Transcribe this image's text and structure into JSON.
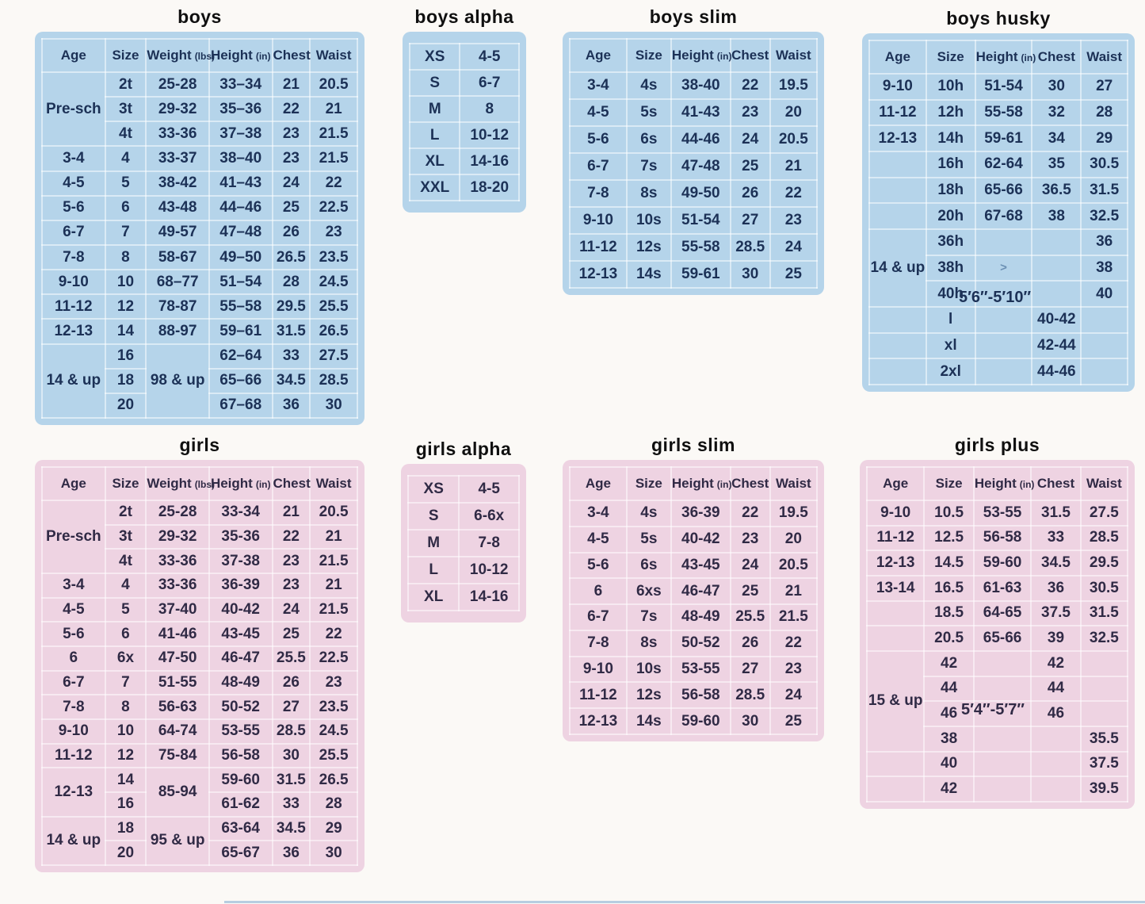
{
  "colors": {
    "blue_panel": "#b5d4ea",
    "pink_panel": "#eed3e2",
    "blue_text": "#1c3156",
    "pink_text": "#302a45"
  },
  "tables": [
    {
      "id": "boys",
      "title": "boys",
      "theme": "blue",
      "headers": [
        {
          "label": "Age"
        },
        {
          "label": "Size"
        },
        {
          "label": "Weight",
          "unit": "(lbs)"
        },
        {
          "label": "Height",
          "unit": "(in)"
        },
        {
          "label": "Chest"
        },
        {
          "label": "Waist"
        }
      ],
      "rows": [
        [
          {
            "t": "Pre-sch",
            "rs": 3
          },
          {
            "t": "2t"
          },
          {
            "t": "25-28"
          },
          {
            "t": "33–34"
          },
          {
            "t": "21"
          },
          {
            "t": "20.5"
          }
        ],
        [
          {
            "t": "3t"
          },
          {
            "t": "29-32"
          },
          {
            "t": "35–36"
          },
          {
            "t": "22"
          },
          {
            "t": "21"
          }
        ],
        [
          {
            "t": "4t"
          },
          {
            "t": "33-36"
          },
          {
            "t": "37–38"
          },
          {
            "t": "23"
          },
          {
            "t": "21.5"
          }
        ],
        [
          "3-4",
          "4",
          "33-37",
          "38–40",
          "23",
          "21.5"
        ],
        [
          "4-5",
          "5",
          "38-42",
          "41–43",
          "24",
          "22"
        ],
        [
          "5-6",
          "6",
          "43-48",
          "44–46",
          "25",
          "22.5"
        ],
        [
          "6-7",
          "7",
          "49-57",
          "47–48",
          "26",
          "23"
        ],
        [
          "7-8",
          "8",
          "58-67",
          "49–50",
          "26.5",
          "23.5"
        ],
        [
          "9-10",
          "10",
          "68–77",
          "51–54",
          "28",
          "24.5"
        ],
        [
          "11-12",
          "12",
          "78-87",
          "55–58",
          "29.5",
          "25.5"
        ],
        [
          "12-13",
          "14",
          "88-97",
          "59–61",
          "31.5",
          "26.5"
        ],
        [
          {
            "t": "14 & up",
            "rs": 3
          },
          {
            "t": "16"
          },
          {
            "t": "98 & up",
            "rs": 3
          },
          {
            "t": "62–64"
          },
          {
            "t": "33"
          },
          {
            "t": "27.5"
          }
        ],
        [
          {
            "t": "18"
          },
          {
            "t": "65–66"
          },
          {
            "t": "34.5"
          },
          {
            "t": "28.5"
          }
        ],
        [
          {
            "t": "20"
          },
          {
            "t": "67–68"
          },
          {
            "t": "36"
          },
          {
            "t": "30"
          }
        ]
      ]
    },
    {
      "id": "boys_alpha",
      "title": "boys alpha",
      "theme": "blue",
      "rows": [
        [
          "XS",
          "4-5"
        ],
        [
          "S",
          "6-7"
        ],
        [
          "M",
          "8"
        ],
        [
          "L",
          "10-12"
        ],
        [
          "XL",
          "14-16"
        ],
        [
          "XXL",
          "18-20"
        ]
      ]
    },
    {
      "id": "boys_slim",
      "title": "boys slim",
      "theme": "blue",
      "headers": [
        {
          "label": "Age"
        },
        {
          "label": "Size"
        },
        {
          "label": "Height",
          "unit": "(in)"
        },
        {
          "label": "Chest"
        },
        {
          "label": "Waist"
        }
      ],
      "rows": [
        [
          "3-4",
          "4s",
          "38-40",
          "22",
          "19.5"
        ],
        [
          "4-5",
          "5s",
          "41-43",
          "23",
          "20"
        ],
        [
          "5-6",
          "6s",
          "44-46",
          "24",
          "20.5"
        ],
        [
          "6-7",
          "7s",
          "47-48",
          "25",
          "21"
        ],
        [
          "7-8",
          "8s",
          "49-50",
          "26",
          "22"
        ],
        [
          "9-10",
          "10s",
          "51-54",
          "27",
          "23"
        ],
        [
          "11-12",
          "12s",
          "55-58",
          "28.5",
          "24"
        ],
        [
          "12-13",
          "14s",
          "59-61",
          "30",
          "25"
        ]
      ]
    },
    {
      "id": "boys_husky",
      "title": "boys husky",
      "theme": "blue",
      "note": "5′6″-5′10″",
      "headers": [
        {
          "label": "Age"
        },
        {
          "label": "Size"
        },
        {
          "label": "Height",
          "unit": "(in)"
        },
        {
          "label": "Chest"
        },
        {
          "label": "Waist"
        }
      ],
      "rows": [
        [
          "9-10",
          "10h",
          "51-54",
          "30",
          "27"
        ],
        [
          "11-12",
          "12h",
          "55-58",
          "32",
          "28"
        ],
        [
          "12-13",
          "14h",
          "59-61",
          "34",
          "29"
        ],
        [
          "",
          "16h",
          "62-64",
          "35",
          "30.5"
        ],
        [
          "",
          "18h",
          "65-66",
          "36.5",
          "31.5"
        ],
        [
          "",
          "20h",
          "67-68",
          "38",
          "32.5"
        ],
        [
          {
            "t": "14 & up",
            "rs": 3
          },
          {
            "t": "36h"
          },
          {
            "t": ""
          },
          {
            "t": ""
          },
          {
            "t": "36"
          }
        ],
        [
          {
            "t": "38h"
          },
          {
            "t": ">",
            "cls": "mark"
          },
          {
            "t": ""
          },
          {
            "t": "38"
          }
        ],
        [
          {
            "t": "40h"
          },
          {
            "t": ""
          },
          {
            "t": ""
          },
          {
            "t": "40"
          }
        ],
        [
          "",
          "l",
          "",
          "40-42",
          ""
        ],
        [
          "",
          "xl",
          "",
          "42-44",
          ""
        ],
        [
          "",
          "2xl",
          "",
          "44-46",
          ""
        ]
      ]
    },
    {
      "id": "girls",
      "title": "girls",
      "theme": "pink",
      "headers": [
        {
          "label": "Age"
        },
        {
          "label": "Size"
        },
        {
          "label": "Weight",
          "unit": "(lbs)"
        },
        {
          "label": "Height",
          "unit": "(in)"
        },
        {
          "label": "Chest"
        },
        {
          "label": "Waist"
        }
      ],
      "rows": [
        [
          {
            "t": "Pre-sch",
            "rs": 3
          },
          {
            "t": "2t"
          },
          {
            "t": "25-28"
          },
          {
            "t": "33-34"
          },
          {
            "t": "21"
          },
          {
            "t": "20.5"
          }
        ],
        [
          {
            "t": "3t"
          },
          {
            "t": "29-32"
          },
          {
            "t": "35-36"
          },
          {
            "t": "22"
          },
          {
            "t": "21"
          }
        ],
        [
          {
            "t": "4t"
          },
          {
            "t": "33-36"
          },
          {
            "t": "37-38"
          },
          {
            "t": "23"
          },
          {
            "t": "21.5"
          }
        ],
        [
          "3-4",
          "4",
          "33-36",
          "36-39",
          "23",
          "21"
        ],
        [
          "4-5",
          "5",
          "37-40",
          "40-42",
          "24",
          "21.5"
        ],
        [
          "5-6",
          "6",
          "41-46",
          "43-45",
          "25",
          "22"
        ],
        [
          "6",
          "6x",
          "47-50",
          "46-47",
          "25.5",
          "22.5"
        ],
        [
          "6-7",
          "7",
          "51-55",
          "48-49",
          "26",
          "23"
        ],
        [
          "7-8",
          "8",
          "56-63",
          "50-52",
          "27",
          "23.5"
        ],
        [
          "9-10",
          "10",
          "64-74",
          "53-55",
          "28.5",
          "24.5"
        ],
        [
          "11-12",
          "12",
          "75-84",
          "56-58",
          "30",
          "25.5"
        ],
        [
          {
            "t": "12-13",
            "rs": 2
          },
          {
            "t": "14"
          },
          {
            "t": "85-94",
            "rs": 2
          },
          {
            "t": "59-60"
          },
          {
            "t": "31.5"
          },
          {
            "t": "26.5"
          }
        ],
        [
          {
            "t": "16"
          },
          {
            "t": "61-62"
          },
          {
            "t": "33"
          },
          {
            "t": "28"
          }
        ],
        [
          {
            "t": "14 & up",
            "rs": 2
          },
          {
            "t": "18"
          },
          {
            "t": "95 & up",
            "rs": 2
          },
          {
            "t": "63-64"
          },
          {
            "t": "34.5"
          },
          {
            "t": "29"
          }
        ],
        [
          {
            "t": "20"
          },
          {
            "t": "65-67"
          },
          {
            "t": "36"
          },
          {
            "t": "30"
          }
        ]
      ]
    },
    {
      "id": "girls_alpha",
      "title": "girls alpha",
      "theme": "pink",
      "rows": [
        [
          "XS",
          "4-5"
        ],
        [
          "S",
          "6-6x"
        ],
        [
          "M",
          "7-8"
        ],
        [
          "L",
          "10-12"
        ],
        [
          "XL",
          "14-16"
        ]
      ]
    },
    {
      "id": "girls_slim",
      "title": "girls slim",
      "theme": "pink",
      "headers": [
        {
          "label": "Age"
        },
        {
          "label": "Size"
        },
        {
          "label": "Height",
          "unit": "(in)"
        },
        {
          "label": "Chest"
        },
        {
          "label": "Waist"
        }
      ],
      "rows": [
        [
          "3-4",
          "4s",
          "36-39",
          "22",
          "19.5"
        ],
        [
          "4-5",
          "5s",
          "40-42",
          "23",
          "20"
        ],
        [
          "5-6",
          "6s",
          "43-45",
          "24",
          "20.5"
        ],
        [
          "6",
          "6xs",
          "46-47",
          "25",
          "21"
        ],
        [
          "6-7",
          "7s",
          "48-49",
          "25.5",
          "21.5"
        ],
        [
          "7-8",
          "8s",
          "50-52",
          "26",
          "22"
        ],
        [
          "9-10",
          "10s",
          "53-55",
          "27",
          "23"
        ],
        [
          "11-12",
          "12s",
          "56-58",
          "28.5",
          "24"
        ],
        [
          "12-13",
          "14s",
          "59-60",
          "30",
          "25"
        ]
      ]
    },
    {
      "id": "girls_plus",
      "title": "girls plus",
      "theme": "pink",
      "note": "5′4″-5′7″",
      "headers": [
        {
          "label": "Age"
        },
        {
          "label": "Size"
        },
        {
          "label": "Height",
          "unit": "(in)"
        },
        {
          "label": "Chest"
        },
        {
          "label": "Waist"
        }
      ],
      "rows": [
        [
          "9-10",
          "10.5",
          "53-55",
          "31.5",
          "27.5"
        ],
        [
          "11-12",
          "12.5",
          "56-58",
          "33",
          "28.5"
        ],
        [
          "12-13",
          "14.5",
          "59-60",
          "34.5",
          "29.5"
        ],
        [
          "13-14",
          "16.5",
          "61-63",
          "36",
          "30.5"
        ],
        [
          "",
          "18.5",
          "64-65",
          "37.5",
          "31.5"
        ],
        [
          "",
          "20.5",
          "65-66",
          "39",
          "32.5"
        ],
        [
          {
            "t": "15 & up",
            "rs": 4
          },
          {
            "t": "42"
          },
          {
            "t": ""
          },
          {
            "t": "42"
          },
          {
            "t": ""
          }
        ],
        [
          {
            "t": "44"
          },
          {
            "t": ""
          },
          {
            "t": "44"
          },
          {
            "t": ""
          }
        ],
        [
          {
            "t": "46"
          },
          {
            "t": ""
          },
          {
            "t": "46"
          },
          {
            "t": ""
          }
        ],
        [
          {
            "t": "38"
          },
          {
            "t": ""
          },
          {
            "t": ""
          },
          {
            "t": "35.5"
          }
        ],
        [
          "",
          "40",
          "",
          "",
          "37.5"
        ],
        [
          "",
          "42",
          "",
          "",
          "39.5"
        ]
      ]
    }
  ]
}
